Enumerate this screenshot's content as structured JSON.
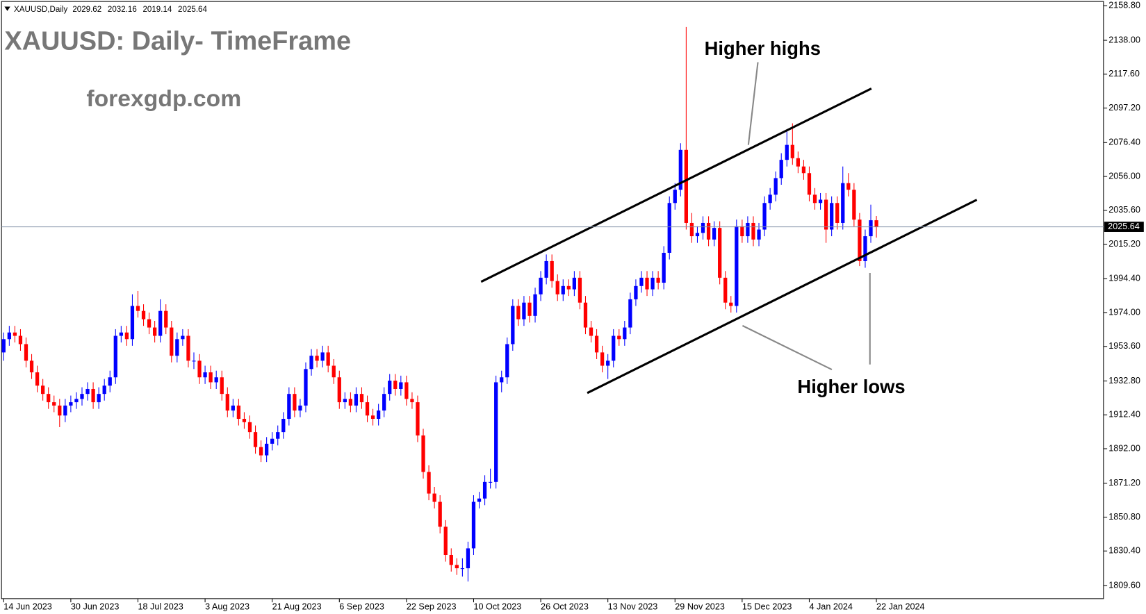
{
  "chart_data": {
    "type": "candlestick",
    "symbol": "XAUUSD,Daily",
    "title": "XAUUSD: Daily- TimeFrame",
    "watermark": "forexgdp.com",
    "annotations": [
      "Higher highs",
      "Higher lows"
    ],
    "up_color": "#0000ff",
    "down_color": "#ff0000",
    "categories": [
      "14 Jun 2023",
      null,
      null,
      null,
      null,
      null,
      null,
      null,
      null,
      null,
      null,
      null,
      "30 Jun 2023",
      null,
      null,
      null,
      null,
      null,
      null,
      null,
      null,
      null,
      null,
      null,
      "18 Jul 2023",
      null,
      null,
      null,
      null,
      null,
      null,
      null,
      null,
      null,
      null,
      null,
      "3 Aug 2023",
      null,
      null,
      null,
      null,
      null,
      null,
      null,
      null,
      null,
      null,
      null,
      "21 Aug 2023",
      null,
      null,
      null,
      null,
      null,
      null,
      null,
      null,
      null,
      null,
      null,
      "6 Sep 2023",
      null,
      null,
      null,
      null,
      null,
      null,
      null,
      null,
      null,
      null,
      null,
      "22 Sep 2023",
      null,
      null,
      null,
      null,
      null,
      null,
      null,
      null,
      null,
      null,
      null,
      "10 Oct 2023",
      null,
      null,
      null,
      null,
      null,
      null,
      null,
      null,
      null,
      null,
      null,
      "26 Oct 2023",
      null,
      null,
      null,
      null,
      null,
      null,
      null,
      null,
      null,
      null,
      null,
      "13 Nov 2023",
      null,
      null,
      null,
      null,
      null,
      null,
      null,
      null,
      null,
      null,
      null,
      "29 Nov 2023",
      null,
      null,
      null,
      null,
      null,
      null,
      null,
      null,
      null,
      null,
      null,
      "15 Dec 2023",
      null,
      null,
      null,
      null,
      null,
      null,
      null,
      null,
      null,
      null,
      null,
      "4 Jan 2024",
      null,
      null,
      null,
      null,
      null,
      null,
      null,
      null,
      null,
      null,
      null,
      "22 Jan 2024"
    ],
    "candles": [
      [
        1950,
        1962,
        1945,
        1958
      ],
      [
        1958,
        1966,
        1954,
        1962
      ],
      [
        1962,
        1966,
        1956,
        1960
      ],
      [
        1960,
        1964,
        1951,
        1955
      ],
      [
        1955,
        1959,
        1941,
        1945
      ],
      [
        1945,
        1949,
        1934,
        1938
      ],
      [
        1938,
        1942,
        1926,
        1930
      ],
      [
        1930,
        1934,
        1921,
        1925
      ],
      [
        1925,
        1929,
        1916,
        1920
      ],
      [
        1920,
        1924,
        1914,
        1918
      ],
      [
        1918,
        1922,
        1905,
        1912
      ],
      [
        1912,
        1922,
        1908,
        1918
      ],
      [
        1918,
        1924,
        1914,
        1920
      ],
      [
        1920,
        1926,
        1916,
        1922
      ],
      [
        1922,
        1929,
        1918,
        1925
      ],
      [
        1925,
        1932,
        1921,
        1928
      ],
      [
        1928,
        1932,
        1916,
        1920
      ],
      [
        1920,
        1929,
        1916,
        1925
      ],
      [
        1925,
        1934,
        1921,
        1930
      ],
      [
        1930,
        1939,
        1926,
        1935
      ],
      [
        1935,
        1964,
        1931,
        1960
      ],
      [
        1960,
        1966,
        1956,
        1962
      ],
      [
        1962,
        1966,
        1954,
        1958
      ],
      [
        1958,
        1985,
        1954,
        1978
      ],
      [
        1978,
        1987,
        1971,
        1975
      ],
      [
        1975,
        1979,
        1966,
        1970
      ],
      [
        1970,
        1974,
        1961,
        1965
      ],
      [
        1965,
        1969,
        1956,
        1960
      ],
      [
        1960,
        1982,
        1956,
        1975
      ],
      [
        1975,
        1979,
        1961,
        1965
      ],
      [
        1965,
        1969,
        1944,
        1948
      ],
      [
        1948,
        1962,
        1944,
        1958
      ],
      [
        1958,
        1964,
        1954,
        1960
      ],
      [
        1960,
        1964,
        1941,
        1945
      ],
      [
        1945,
        1950,
        1940,
        1945
      ],
      [
        1945,
        1949,
        1931,
        1935
      ],
      [
        1935,
        1942,
        1931,
        1938
      ],
      [
        1938,
        1942,
        1928,
        1932
      ],
      [
        1932,
        1939,
        1928,
        1935
      ],
      [
        1935,
        1939,
        1921,
        1925
      ],
      [
        1925,
        1929,
        1911,
        1915
      ],
      [
        1915,
        1922,
        1911,
        1918
      ],
      [
        1918,
        1922,
        1906,
        1910
      ],
      [
        1910,
        1914,
        1904,
        1908
      ],
      [
        1908,
        1912,
        1898,
        1902
      ],
      [
        1902,
        1906,
        1889,
        1893
      ],
      [
        1893,
        1897,
        1884,
        1888
      ],
      [
        1888,
        1899,
        1884,
        1895
      ],
      [
        1895,
        1902,
        1891,
        1898
      ],
      [
        1898,
        1906,
        1894,
        1902
      ],
      [
        1902,
        1914,
        1898,
        1910
      ],
      [
        1910,
        1929,
        1906,
        1925
      ],
      [
        1925,
        1929,
        1911,
        1915
      ],
      [
        1915,
        1922,
        1911,
        1918
      ],
      [
        1918,
        1944,
        1914,
        1940
      ],
      [
        1940,
        1952,
        1936,
        1948
      ],
      [
        1948,
        1952,
        1941,
        1945
      ],
      [
        1945,
        1954,
        1941,
        1950
      ],
      [
        1950,
        1954,
        1938,
        1942
      ],
      [
        1942,
        1946,
        1931,
        1935
      ],
      [
        1935,
        1939,
        1916,
        1920
      ],
      [
        1920,
        1926,
        1916,
        1922
      ],
      [
        1922,
        1926,
        1914,
        1918
      ],
      [
        1918,
        1929,
        1914,
        1925
      ],
      [
        1925,
        1929,
        1916,
        1920
      ],
      [
        1920,
        1924,
        1908,
        1912
      ],
      [
        1912,
        1916,
        1906,
        1910
      ],
      [
        1910,
        1919,
        1906,
        1915
      ],
      [
        1915,
        1929,
        1911,
        1925
      ],
      [
        1925,
        1937,
        1921,
        1933
      ],
      [
        1933,
        1937,
        1924,
        1928
      ],
      [
        1928,
        1936,
        1924,
        1932
      ],
      [
        1932,
        1936,
        1918,
        1922
      ],
      [
        1922,
        1926,
        1916,
        1920
      ],
      [
        1920,
        1924,
        1896,
        1900
      ],
      [
        1900,
        1904,
        1874,
        1878
      ],
      [
        1878,
        1882,
        1861,
        1865
      ],
      [
        1865,
        1869,
        1856,
        1860
      ],
      [
        1860,
        1864,
        1841,
        1845
      ],
      [
        1845,
        1849,
        1824,
        1828
      ],
      [
        1828,
        1832,
        1818,
        1822
      ],
      [
        1822,
        1826,
        1816,
        1820
      ],
      [
        1820,
        1826,
        1815,
        1820
      ],
      [
        1820,
        1836,
        1812,
        1832
      ],
      [
        1832,
        1864,
        1828,
        1860
      ],
      [
        1860,
        1866,
        1856,
        1862
      ],
      [
        1862,
        1876,
        1858,
        1872
      ],
      [
        1872,
        1880,
        1868,
        1872
      ],
      [
        1872,
        1936,
        1868,
        1932
      ],
      [
        1932,
        1939,
        1926,
        1935
      ],
      [
        1935,
        1959,
        1931,
        1955
      ],
      [
        1955,
        1982,
        1951,
        1978
      ],
      [
        1978,
        1982,
        1966,
        1970
      ],
      [
        1970,
        1984,
        1966,
        1980
      ],
      [
        1980,
        1984,
        1968,
        1972
      ],
      [
        1972,
        1989,
        1968,
        1985
      ],
      [
        1985,
        1999,
        1981,
        1995
      ],
      [
        1995,
        2009,
        1991,
        2005
      ],
      [
        2005,
        2009,
        1989,
        1993
      ],
      [
        1993,
        1997,
        1981,
        1985
      ],
      [
        1985,
        1994,
        1981,
        1990
      ],
      [
        1990,
        1994,
        1984,
        1988
      ],
      [
        1988,
        1999,
        1984,
        1995
      ],
      [
        1995,
        1999,
        1976,
        1980
      ],
      [
        1980,
        1984,
        1961,
        1965
      ],
      [
        1965,
        1969,
        1956,
        1960
      ],
      [
        1960,
        1964,
        1946,
        1950
      ],
      [
        1950,
        1954,
        1938,
        1942
      ],
      [
        1942,
        1949,
        1934,
        1945
      ],
      [
        1945,
        1964,
        1941,
        1960
      ],
      [
        1960,
        1964,
        1954,
        1958
      ],
      [
        1958,
        1969,
        1954,
        1965
      ],
      [
        1965,
        1986,
        1961,
        1982
      ],
      [
        1982,
        1994,
        1978,
        1990
      ],
      [
        1990,
        1999,
        1986,
        1995
      ],
      [
        1995,
        1999,
        1984,
        1988
      ],
      [
        1988,
        1999,
        1984,
        1995
      ],
      [
        1995,
        1999,
        1988,
        1992
      ],
      [
        1992,
        2014,
        1988,
        2010
      ],
      [
        2010,
        2044,
        2006,
        2040
      ],
      [
        2040,
        2052,
        2036,
        2048
      ],
      [
        2048,
        2076,
        2044,
        2072
      ],
      [
        2072,
        2146,
        2024,
        2028
      ],
      [
        2028,
        2034,
        2016,
        2020
      ],
      [
        2020,
        2026,
        2016,
        2022
      ],
      [
        2022,
        2032,
        2018,
        2028
      ],
      [
        2028,
        2032,
        2014,
        2018
      ],
      [
        2018,
        2029,
        2014,
        2025
      ],
      [
        2025,
        2029,
        1991,
        1995
      ],
      [
        1995,
        1999,
        1976,
        1980
      ],
      [
        1980,
        1984,
        1974,
        1978
      ],
      [
        1978,
        2030,
        1974,
        2026
      ],
      [
        2026,
        2030,
        2016,
        2020
      ],
      [
        2020,
        2032,
        2016,
        2028
      ],
      [
        2028,
        2032,
        2014,
        2018
      ],
      [
        2018,
        2028,
        2014,
        2024
      ],
      [
        2024,
        2044,
        2020,
        2040
      ],
      [
        2040,
        2049,
        2036,
        2045
      ],
      [
        2045,
        2059,
        2041,
        2055
      ],
      [
        2055,
        2070,
        2051,
        2066
      ],
      [
        2066,
        2083,
        2062,
        2075
      ],
      [
        2075,
        2088,
        2063,
        2067
      ],
      [
        2067,
        2071,
        2058,
        2062
      ],
      [
        2062,
        2066,
        2054,
        2058
      ],
      [
        2058,
        2062,
        2041,
        2045
      ],
      [
        2045,
        2049,
        2036,
        2040
      ],
      [
        2040,
        2046,
        2036,
        2042
      ],
      [
        2042,
        2046,
        2016,
        2024
      ],
      [
        2024,
        2044,
        2020,
        2040
      ],
      [
        2040,
        2044,
        2024,
        2028
      ],
      [
        2028,
        2062,
        2024,
        2052
      ],
      [
        2052,
        2058,
        2044,
        2048
      ],
      [
        2048,
        2052,
        2026,
        2030
      ],
      [
        2030,
        2034,
        2002,
        2005
      ],
      [
        2005,
        2024,
        2001,
        2020
      ],
      [
        2020,
        2039,
        2016,
        2029.62
      ],
      [
        2029.62,
        2032.16,
        2019.14,
        2025.64
      ]
    ],
    "ylim": [
      1801.7,
      2161.4
    ],
    "yticks": [
      {
        "value": 1809.6,
        "label": "1809.60"
      },
      {
        "value": 1830.4,
        "label": "1830.40"
      },
      {
        "value": 1850.8,
        "label": "1850.80"
      },
      {
        "value": 1871.2,
        "label": "1871.20"
      },
      {
        "value": 1892,
        "label": "1892.00"
      },
      {
        "value": 1912.4,
        "label": "1912.40"
      },
      {
        "value": 1932.8,
        "label": "1932.80"
      },
      {
        "value": 1953.6,
        "label": "1953.60"
      },
      {
        "value": 1974,
        "label": "1974.00"
      },
      {
        "value": 1994.4,
        "label": "1994.40"
      },
      {
        "value": 2015.2,
        "label": "2015.20"
      },
      {
        "value": 2035.6,
        "label": "2035.60"
      },
      {
        "value": 2056,
        "label": "2056.00"
      },
      {
        "value": 2076.4,
        "label": "2076.40"
      },
      {
        "value": 2097.2,
        "label": "2097.20"
      },
      {
        "value": 2117.6,
        "label": "2117.60"
      },
      {
        "value": 2138,
        "label": "2138.00"
      },
      {
        "value": 2158.8,
        "label": "2158.80"
      }
    ],
    "grid": false
  }
}
